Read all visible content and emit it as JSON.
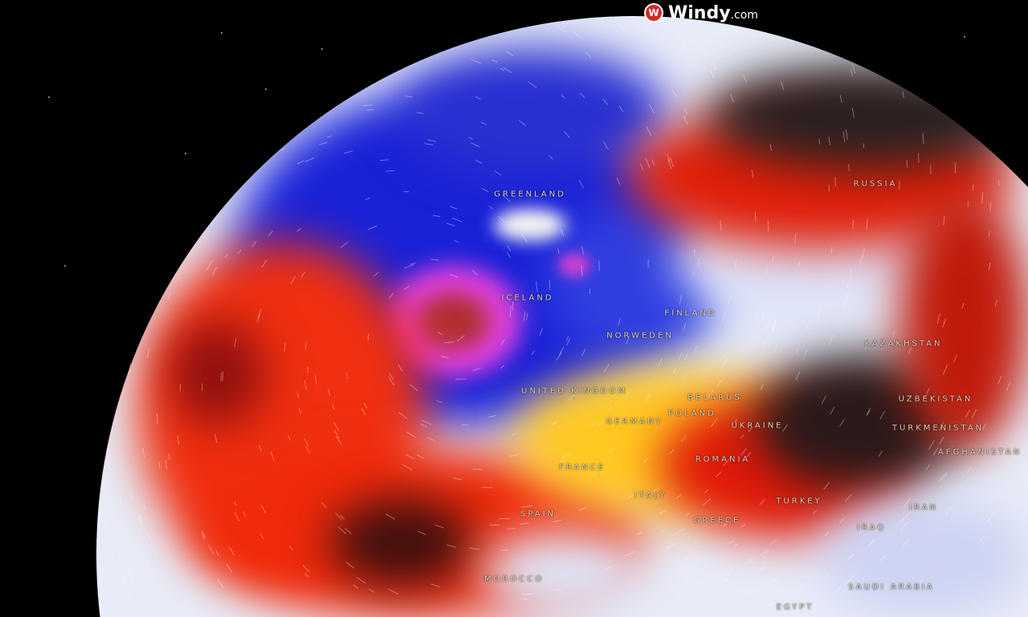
{
  "brand": {
    "name": "Windy",
    "suffix": ".com",
    "color": "#d32a24"
  },
  "map": {
    "palette": {
      "cold": "#1a1ad0",
      "very_cold": "#e040e0",
      "neutral": "#e8ecf8",
      "warm": "#ffe020",
      "hot": "#e81e0a",
      "extreme": "#2a2a2a"
    },
    "labels": [
      {
        "text": "GREENLAND"
      },
      {
        "text": "ICELAND"
      },
      {
        "text": "FINLAND"
      },
      {
        "text": "NORWEDEN"
      },
      {
        "text": "UNITED KINGDOM"
      },
      {
        "text": "GERMANY"
      },
      {
        "text": "POLAND"
      },
      {
        "text": "BELARUS"
      },
      {
        "text": "UKRAINE"
      },
      {
        "text": "ROMANIA"
      },
      {
        "text": "FRANCE"
      },
      {
        "text": "SPAIN"
      },
      {
        "text": "ITALY"
      },
      {
        "text": "GREECE"
      },
      {
        "text": "TURKEY"
      },
      {
        "text": "IRAQ"
      },
      {
        "text": "IRAN"
      },
      {
        "text": "SAUDI ARABIA"
      },
      {
        "text": "EGYPT"
      },
      {
        "text": "MOROCCO"
      },
      {
        "text": "RUSSIA"
      },
      {
        "text": "KAZAKHSTAN"
      },
      {
        "text": "UZBEKISTAN"
      },
      {
        "text": "TURKMENISTAN"
      },
      {
        "text": "AFGHANISTAN"
      }
    ]
  }
}
